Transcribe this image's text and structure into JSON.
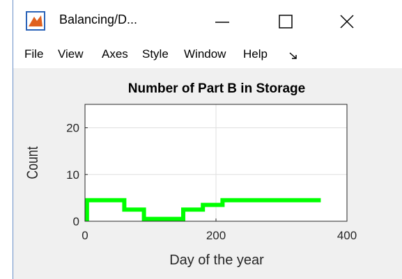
{
  "window": {
    "title": "Balancing/D..."
  },
  "menu": [
    "File",
    "View",
    "Axes",
    "Style",
    "Window",
    "Help"
  ],
  "chart_data": {
    "type": "line",
    "title": "Number of Part B in Storage",
    "x_label": "Day of the year",
    "y_label": "Count",
    "x": [
      3,
      3,
      60,
      60,
      90,
      90,
      150,
      150,
      180,
      180,
      210,
      210,
      360
    ],
    "series": [
      {
        "name": "Part B",
        "color": "#00ff00",
        "values": [
          0,
          4.5,
          4.5,
          2.5,
          2.5,
          0.5,
          0.5,
          2.5,
          2.5,
          3.5,
          3.5,
          4.5,
          4.5
        ]
      }
    ],
    "xlim": [
      0,
      400
    ],
    "xticks": [
      0,
      200,
      400
    ],
    "ylim": [
      0,
      25
    ],
    "yticks": [
      0,
      10,
      20
    ],
    "grid": true
  }
}
